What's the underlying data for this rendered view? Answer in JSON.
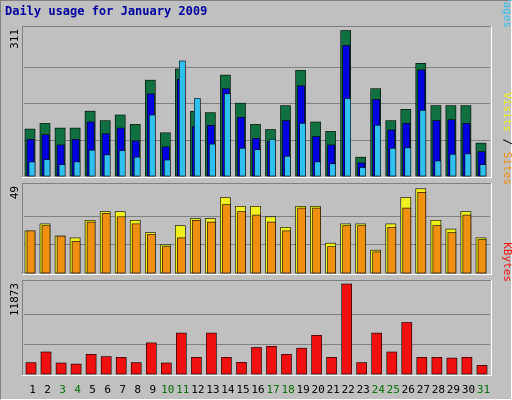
{
  "chart_data": {
    "type": "bar",
    "title": "Daily usage for January 2009",
    "categories": [
      "1",
      "2",
      "3",
      "4",
      "5",
      "6",
      "7",
      "8",
      "9",
      "10",
      "11",
      "12",
      "13",
      "14",
      "15",
      "16",
      "17",
      "18",
      "19",
      "20",
      "21",
      "22",
      "23",
      "24",
      "25",
      "26",
      "27",
      "28",
      "29",
      "30",
      "31"
    ],
    "weekend_days": [
      "3",
      "4",
      "10",
      "11",
      "17",
      "18",
      "24",
      "25",
      "31"
    ],
    "colors": {
      "background": "#c0c0c0",
      "weekday_label": "#000000",
      "weekend_label": "#007000",
      "title": "#0000a0",
      "hits": "#107040",
      "files": "#0000e0",
      "pages": "#30c0f0",
      "visits": "#f0f020",
      "sites": "#f09010",
      "kbytes": "#f01010"
    },
    "panels": [
      {
        "id": "hits_files_pages",
        "ymax": 311,
        "ymax_label": "311",
        "ylim": [
          0,
          311
        ],
        "legend_right": [
          {
            "text": "Pages",
            "color": "#30c0f0"
          },
          {
            "text": "Files",
            "color": "#0000e0"
          },
          {
            "text": "Hits",
            "color": "#107040"
          }
        ],
        "series": [
          {
            "name": "Hits",
            "color": "#107040",
            "values": [
              100,
              112,
              102,
              102,
              138,
              118,
              130,
              110,
              204,
              92,
              228,
              138,
              135,
              215,
              155,
              110,
              99,
              150,
              225,
              115,
              95,
              310,
              40,
              186,
              118,
              142,
              240,
              150,
              150,
              150,
              70
            ]
          },
          {
            "name": "Files",
            "color": "#0000e0",
            "values": [
              78,
              88,
              66,
              78,
              115,
              90,
              102,
              75,
              175,
              62,
              206,
              105,
              108,
              186,
              125,
              80,
              74,
              118,
              192,
              84,
              66,
              278,
              28,
              163,
              98,
              112,
              226,
              118,
              120,
              112,
              52
            ]
          },
          {
            "name": "Pages",
            "color": "#30c0f0",
            "values": [
              30,
              35,
              24,
              30,
              55,
              45,
              54,
              40,
              130,
              34,
              245,
              165,
              68,
              175,
              59,
              56,
              78,
              42,
              112,
              30,
              26,
              165,
              18,
              108,
              59,
              60,
              140,
              32,
              46,
              47,
              24
            ]
          }
        ]
      },
      {
        "id": "visits_sites",
        "ymax": 49,
        "ymax_label": "49",
        "ylim": [
          0,
          49
        ],
        "legend_right": [
          {
            "text": "Sites",
            "color": "#f09010"
          },
          {
            "text": "/",
            "color": "#000000"
          },
          {
            "text": "Visits",
            "color": "#f0f020"
          }
        ],
        "series": [
          {
            "name": "Visits",
            "color": "#f0f020",
            "values": [
              24,
              28,
              21,
              20,
              30,
              35,
              35,
              30,
              23,
              16,
              27,
              31,
              31,
              43,
              38,
              38,
              32,
              26,
              38,
              38,
              17,
              28,
              28,
              13,
              28,
              43,
              48,
              30,
              25,
              35,
              20
            ]
          },
          {
            "name": "Sites",
            "color": "#f09010",
            "values": [
              24,
              27,
              21,
              18,
              29,
              34,
              32,
              28,
              22,
              15,
              20,
              30,
              29,
              39,
              35,
              33,
              29,
              24,
              37,
              37,
              15,
              27,
              27,
              12,
              26,
              37,
              46,
              27,
              23,
              33,
              19
            ]
          }
        ]
      },
      {
        "id": "kbytes",
        "ymax": 11873,
        "ymax_label": "11873",
        "ylim": [
          0,
          11873
        ],
        "legend_right": [
          {
            "text": "KBytes",
            "color": "#f01010"
          }
        ],
        "series": [
          {
            "name": "KBytes",
            "color": "#f01010",
            "values": [
              1500,
              2900,
              1450,
              1300,
              2600,
              2300,
              2200,
              1500,
              4100,
              1450,
              5400,
              2200,
              5400,
              2200,
              1550,
              3500,
              3650,
              2600,
              3400,
              5100,
              2200,
              11873,
              1500,
              5400,
              2900,
              6800,
              2200,
              2200,
              2100,
              2200,
              1150
            ]
          }
        ]
      }
    ]
  }
}
